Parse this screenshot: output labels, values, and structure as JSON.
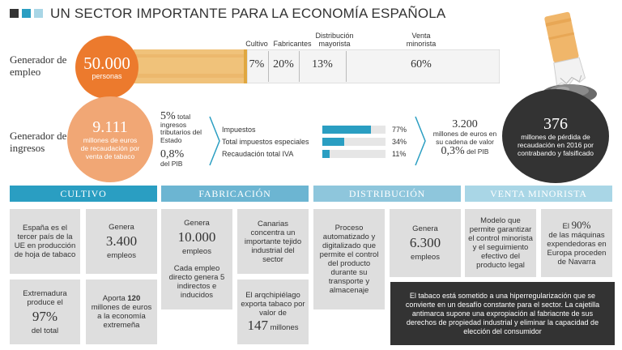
{
  "title": "UN SECTOR IMPORTANTE PARA LA ECONOMÍA ESPAÑOLA",
  "colors": {
    "dark": "#333333",
    "blue": "#2a9ec2",
    "mid_blue": "#6cb5d2",
    "light_blue": "#a9d6e6",
    "orange": "#ec7a2d",
    "light_orange": "#f1a775",
    "box_gray": "#dedede"
  },
  "employment": {
    "label": "Generador de empleo",
    "value": "50.000",
    "unit": "personas",
    "segments": [
      {
        "label": "Cultivo",
        "value": "7%"
      },
      {
        "label": "Fabricantes",
        "value": "20%"
      },
      {
        "label": "Distribución mayorista",
        "value": "13%"
      },
      {
        "label": "Venta minorista",
        "value": "60%"
      }
    ]
  },
  "revenue": {
    "label": "Generador de ingresos",
    "value": "9.111",
    "desc": "millones de euros de recaudación por venta de tabaco",
    "share_state_value": "5%",
    "share_state_text": "total ingresos tributarios del Estado",
    "share_pib_value": "0,8%",
    "share_pib_text": "del PIB",
    "bars": [
      {
        "label": "Impuestos",
        "value": "77%",
        "pct": 77
      },
      {
        "label": "Total impuestos especiales",
        "value": "34%",
        "pct": 34
      },
      {
        "label": "Recaudación total IVA",
        "value": "11%",
        "pct": 11
      }
    ],
    "chain_value": "3.200",
    "chain_text": "millones de euros en su cadena de valor",
    "chain_pib_value": "0,3%",
    "chain_pib_text": "del PIB"
  },
  "loss": {
    "value": "376",
    "text": "millones de pérdida de recaudación en 2016 por contrabando y falsificado"
  },
  "sections": {
    "cultivo": "CULTIVO",
    "fabricacion": "FABRICACIÓN",
    "distribucion": "DISTRIBUCIÓN",
    "venta": "VENTA MINORISTA"
  },
  "boxes": {
    "c1": "España es el tercer país de la UE en producción de hoja de tabaco",
    "c2_pre": "Genera",
    "c2_value": "3.400",
    "c2_post": "empleos",
    "c3_pre": "Extremadura produce el",
    "c3_value": "97%",
    "c3_post": "del total",
    "c4_pre": "Aporta",
    "c4_value": "120",
    "c4_post": "millones de euros a la economía extremeña",
    "f1_pre": "Genera",
    "f1_value": "10.000",
    "f1_post": "empleos",
    "f1_extra": "Cada empleo directo genera 5 indirectos e inducidos",
    "f2": "Canarias concentra un importante tejido industrial del sector",
    "f3_pre": "El arqchipiélago exporta tabaco por valor de",
    "f3_value": "147",
    "f3_post": "millones",
    "d1": "Proceso automatizado y digitalizado que permite el control del producto durante su transporte y almacenaje",
    "d2_pre": "Genera",
    "d2_value": "6.300",
    "d2_post": "empleos",
    "v1": "Modelo que permite garantizar el control minorista y el seguimiento efectivo del producto legal",
    "v2_pre": "El",
    "v2_value": "90%",
    "v2_post": "de las máquinas expendedoras en Europa proceden de Navarra",
    "note": "El tabaco está sometido a una hiperregularización que se convierte en un desafío constante para el sector. La cajetilla antimarca supone una expropiación al fabriacnte de sus derechos de propiedad industrial y eliminar la capacidad de elección del consumidor"
  }
}
